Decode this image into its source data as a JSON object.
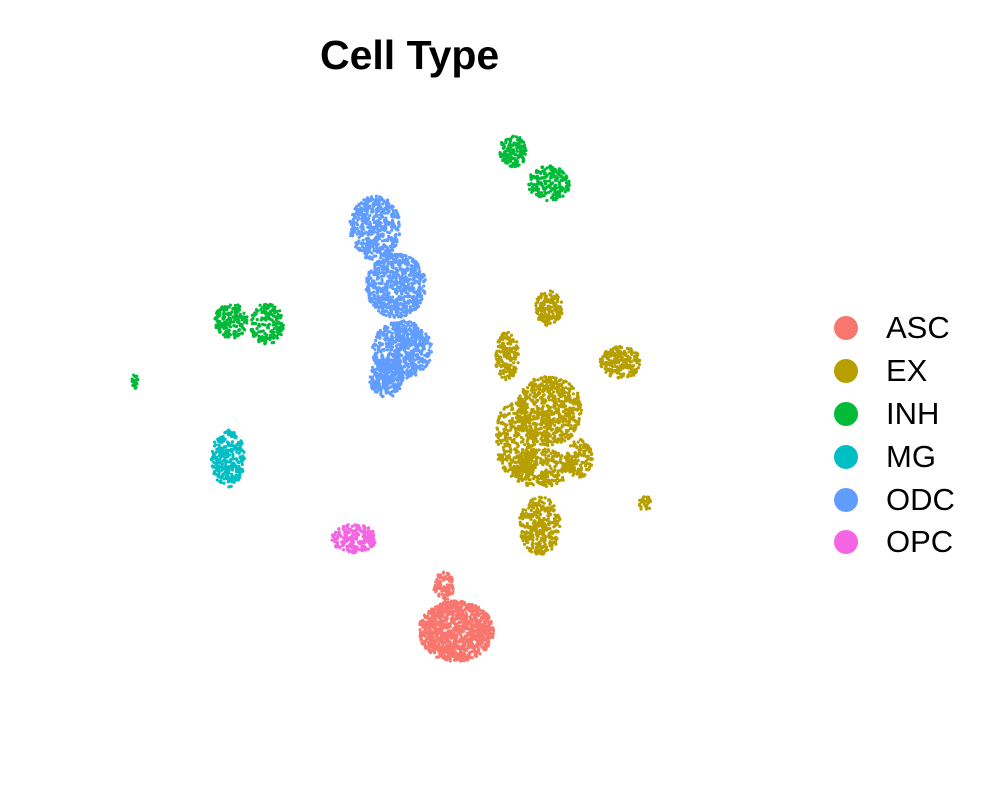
{
  "chart_data": {
    "type": "scatter",
    "title": "Cell Type",
    "xlabel": "",
    "ylabel": "",
    "axes_visible": false,
    "grid": false,
    "legend_position": "right",
    "x_range": [
      -10,
      10
    ],
    "y_range": [
      -10,
      10
    ],
    "series": [
      {
        "name": "ASC",
        "color": "#F8766D",
        "clusters": [
          {
            "cx": 1.2,
            "cy": -6.6,
            "rx": 1.25,
            "ry": 0.95,
            "n": 1100
          },
          {
            "cx": 0.8,
            "cy": -5.2,
            "rx": 0.35,
            "ry": 0.45,
            "n": 90
          }
        ]
      },
      {
        "name": "EX",
        "color": "#B79F00",
        "clusters": [
          {
            "cx": 4.3,
            "cy": 0.3,
            "rx": 1.1,
            "ry": 1.1,
            "n": 650
          },
          {
            "cx": 3.2,
            "cy": -0.6,
            "rx": 0.7,
            "ry": 1.2,
            "n": 320
          },
          {
            "cx": 4.0,
            "cy": -1.5,
            "rx": 1.0,
            "ry": 0.6,
            "n": 300
          },
          {
            "cx": 4.0,
            "cy": -3.3,
            "rx": 0.7,
            "ry": 0.9,
            "n": 330
          },
          {
            "cx": 5.3,
            "cy": -1.2,
            "rx": 0.45,
            "ry": 0.6,
            "n": 140
          },
          {
            "cx": 2.9,
            "cy": 2.0,
            "rx": 0.4,
            "ry": 0.75,
            "n": 180
          },
          {
            "cx": 4.3,
            "cy": 3.5,
            "rx": 0.45,
            "ry": 0.55,
            "n": 170
          },
          {
            "cx": 6.7,
            "cy": 1.8,
            "rx": 0.7,
            "ry": 0.5,
            "n": 230
          },
          {
            "cx": 7.5,
            "cy": -2.6,
            "rx": 0.2,
            "ry": 0.25,
            "n": 30
          }
        ]
      },
      {
        "name": "INH",
        "color": "#00BA38",
        "clusters": [
          {
            "cx": 3.1,
            "cy": 8.4,
            "rx": 0.45,
            "ry": 0.5,
            "n": 160
          },
          {
            "cx": 4.3,
            "cy": 7.4,
            "rx": 0.7,
            "ry": 0.55,
            "n": 210
          },
          {
            "cx": -6.3,
            "cy": 3.1,
            "rx": 0.55,
            "ry": 0.55,
            "n": 170
          },
          {
            "cx": -5.1,
            "cy": 3.0,
            "rx": 0.55,
            "ry": 0.65,
            "n": 180
          },
          {
            "cx": -9.5,
            "cy": 1.2,
            "rx": 0.12,
            "ry": 0.22,
            "n": 24
          }
        ]
      },
      {
        "name": "MG",
        "color": "#00BFC4",
        "clusters": [
          {
            "cx": -6.4,
            "cy": -1.2,
            "rx": 0.55,
            "ry": 0.9,
            "n": 300
          }
        ]
      },
      {
        "name": "ODC",
        "color": "#619CFF",
        "clusters": [
          {
            "cx": -1.5,
            "cy": 6.0,
            "rx": 0.85,
            "ry": 1.0,
            "n": 500
          },
          {
            "cx": -0.8,
            "cy": 4.2,
            "rx": 1.0,
            "ry": 1.0,
            "n": 650
          },
          {
            "cx": -0.6,
            "cy": 2.2,
            "rx": 1.0,
            "ry": 0.9,
            "n": 600
          },
          {
            "cx": -1.1,
            "cy": 1.3,
            "rx": 0.6,
            "ry": 0.6,
            "n": 250
          }
        ]
      },
      {
        "name": "OPC",
        "color": "#F564E3",
        "clusters": [
          {
            "cx": -2.2,
            "cy": -3.7,
            "rx": 0.75,
            "ry": 0.45,
            "n": 220
          }
        ]
      }
    ]
  }
}
